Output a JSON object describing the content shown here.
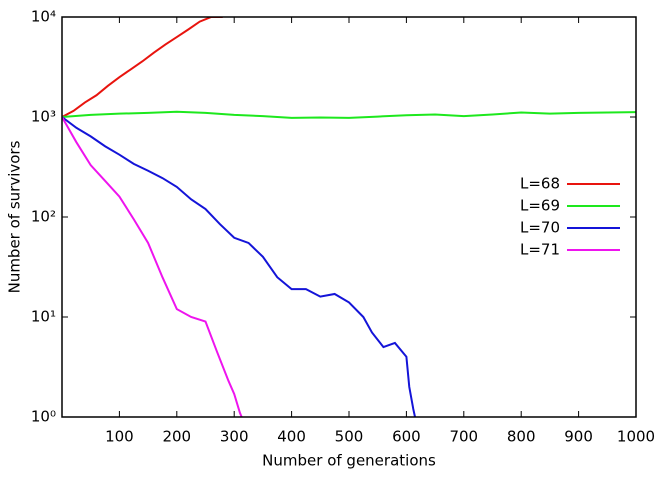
{
  "chart_data": {
    "type": "line",
    "x_label": "Number of generations",
    "y_label": "Number of survivors",
    "log_y": true,
    "legend": "right",
    "xlim": [
      0,
      1000
    ],
    "xticks": [
      100,
      200,
      300,
      400,
      500,
      600,
      700,
      800,
      900,
      1000
    ],
    "ylim": [
      1,
      10000
    ],
    "yticks": [
      {
        "value": 1,
        "label": "10⁰"
      },
      {
        "value": 10,
        "label": "10¹"
      },
      {
        "value": 100,
        "label": "10²"
      },
      {
        "value": 1000,
        "label": "10³"
      },
      {
        "value": 10000,
        "label": "10⁴"
      }
    ],
    "series": [
      {
        "name": "L=68",
        "color": "#e8140e",
        "x": [
          0,
          20,
          40,
          60,
          80,
          100,
          120,
          140,
          160,
          180,
          200,
          220,
          240,
          260,
          280
        ],
        "values": [
          1000,
          1150,
          1400,
          1650,
          2050,
          2500,
          3000,
          3600,
          4400,
          5300,
          6300,
          7500,
          9000,
          10000,
          10000
        ]
      },
      {
        "name": "L=69",
        "color": "#1de81d",
        "x": [
          0,
          50,
          100,
          150,
          200,
          250,
          300,
          350,
          400,
          450,
          500,
          550,
          600,
          650,
          700,
          750,
          800,
          850,
          900,
          950,
          1000
        ],
        "values": [
          1000,
          1050,
          1080,
          1100,
          1130,
          1100,
          1050,
          1020,
          980,
          990,
          980,
          1010,
          1040,
          1060,
          1020,
          1060,
          1110,
          1080,
          1100,
          1110,
          1120
        ]
      },
      {
        "name": "L=70",
        "color": "#1414d8",
        "x": [
          0,
          25,
          50,
          75,
          100,
          125,
          150,
          175,
          200,
          225,
          250,
          275,
          300,
          325,
          350,
          375,
          400,
          425,
          450,
          475,
          500,
          525,
          540,
          560,
          580,
          600,
          605,
          612,
          615
        ],
        "values": [
          1000,
          780,
          640,
          510,
          420,
          340,
          290,
          245,
          200,
          150,
          120,
          85,
          62,
          55,
          40,
          25,
          19,
          19,
          16,
          17,
          14,
          10,
          7,
          5,
          5.5,
          4,
          2,
          1.2,
          1
        ]
      },
      {
        "name": "L=71",
        "color": "#ee14ee",
        "x": [
          0,
          25,
          50,
          75,
          100,
          125,
          150,
          175,
          200,
          225,
          250,
          270,
          290,
          300,
          310,
          313
        ],
        "values": [
          1000,
          560,
          330,
          230,
          160,
          95,
          55,
          25,
          12,
          10,
          9,
          4.5,
          2.3,
          1.7,
          1.1,
          1
        ]
      }
    ]
  }
}
